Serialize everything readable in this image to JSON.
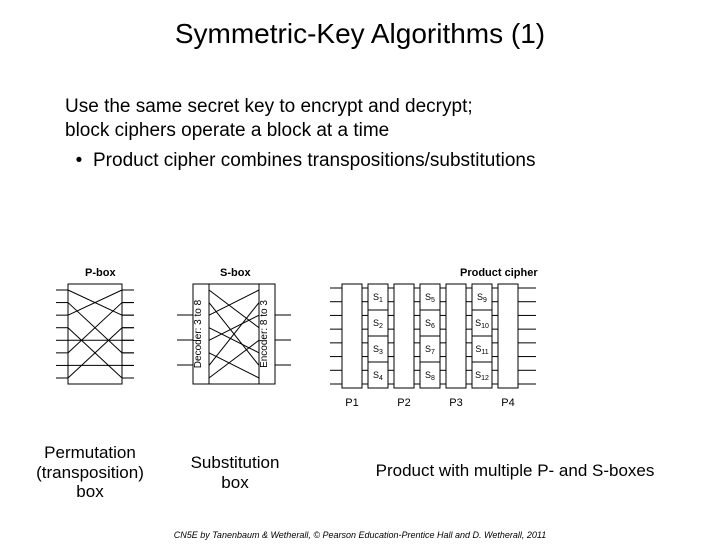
{
  "title": "Symmetric-Key Algorithms (1)",
  "intro_line1": "Use the same secret key to encrypt and decrypt;",
  "intro_line2": "block ciphers operate a block at a time",
  "bullet": "Product cipher combines transpositions/substitutions",
  "labels": {
    "pbox": "P-box",
    "sbox": "S-box",
    "product": "Product cipher",
    "decoder": "Decoder: 3 to 8",
    "encoder": "Encoder: 8 to 3"
  },
  "captions": {
    "perm": "Permutation (transposition) box",
    "sub": "Substitution box",
    "prod": "Product with multiple P- and S-boxes"
  },
  "footer": "CN5E by Tanenbaum & Wetherall, © Pearson Education-Prentice Hall and D. Wetherall, 2011",
  "style": {
    "line_color": "#000000",
    "box_fill": "#ffffff",
    "label_fontsize": 11,
    "title_fontsize": 28,
    "body_fontsize": 19,
    "caption_fontsize": 17
  },
  "pbox": {
    "n_lines": 8,
    "perm": [
      2,
      5,
      0,
      7,
      4,
      1,
      6,
      3
    ]
  },
  "sbox": {
    "in_lines": 3,
    "mid_lines": 8,
    "perm": [
      3,
      6,
      0,
      5,
      2,
      7,
      1,
      4
    ]
  },
  "product": {
    "stages_P": [
      "P1",
      "P2",
      "P3",
      "P4"
    ],
    "stages_S": [
      [
        "S1",
        "S2",
        "S3",
        "S4"
      ],
      [
        "S5",
        "S6",
        "S7",
        "S8"
      ],
      [
        "S9",
        "S10",
        "S11",
        "S12"
      ]
    ],
    "io_lines": 8
  }
}
